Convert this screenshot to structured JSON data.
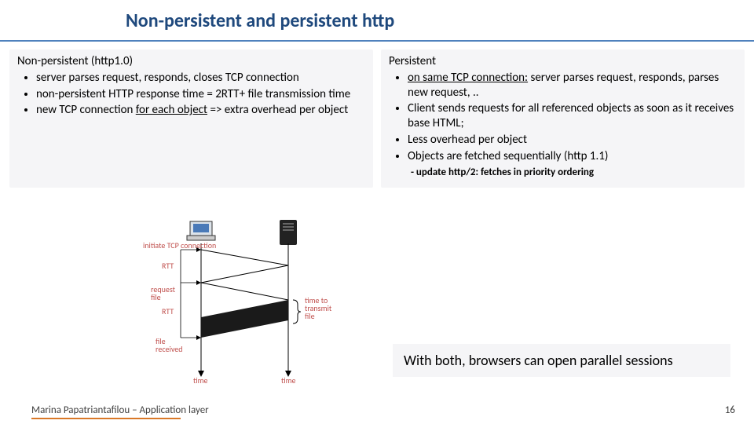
{
  "title": "Non-persistent and persistent http",
  "left": {
    "header": "Non-persistent (http1.0)",
    "items": [
      "server parses request, responds, closes TCP connection",
      "non-persistent HTTP response time =  2RTT+ file transmission  time",
      "new TCP connection <u>for each object</u> => extra overhead per object"
    ]
  },
  "right": {
    "header": "Persistent",
    "items": [
      "<u>on same TCP connection:</u> server parses request, responds, parses new request, ..",
      "Client sends requests for all referenced objects as soon as it receives base HTML;",
      "Less overhead per object",
      "Objects are fetched sequentially (http 1.1)"
    ],
    "note": "- update http/2: fetches in priority ordering"
  },
  "callout": "With both, browsers can open parallel sessions",
  "footer": "Marina Papatriantafilou –  Application layer",
  "page": "16",
  "diagram": {
    "labels": {
      "initiate": "initiate TCP\nconnection",
      "rtt1": "RTT",
      "request": "request\nfile",
      "rtt2": "RTT",
      "received": "file\nreceived",
      "time_left": "time",
      "time_right": "time",
      "transmit": "time to\ntransmit\nfile"
    },
    "colors": {
      "label": "#c0504d",
      "line": "#000000",
      "arrow_thin": "#000000",
      "brace": "#000000"
    }
  },
  "colors": {
    "title": "#1f497d",
    "rule": "#4f81bd",
    "box_bg": "#f5f5f7",
    "footer_accent": "#d97828"
  }
}
